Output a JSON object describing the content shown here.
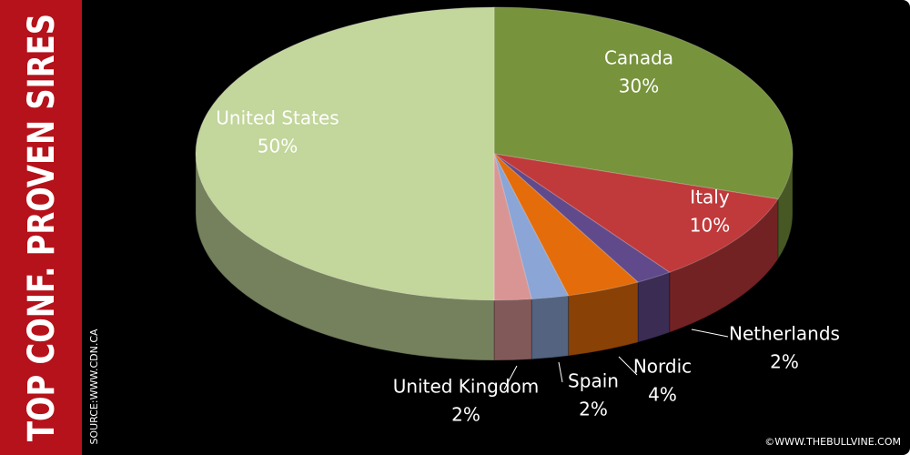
{
  "chart_data": {
    "type": "pie3d",
    "title": "TOP CONF. PROVEN SIRES",
    "source": "SOURCE:WWW.CDN.CA",
    "credit": "©WWW.THEBULLVINE.COM",
    "categories": [
      "Canada",
      "Italy",
      "Netherlands",
      "Nordic",
      "Spain",
      "United Kingdom",
      "United States"
    ],
    "values": [
      30,
      10,
      2,
      4,
      2,
      2,
      50
    ],
    "value_labels": [
      "30%",
      "10%",
      "2%",
      "4%",
      "2%",
      "2%",
      "50%"
    ],
    "colors": [
      "#77933c",
      "#c0393b",
      "#604a8b",
      "#e46c0a",
      "#8aa5d6",
      "#d99594",
      "#c3d69b"
    ]
  }
}
